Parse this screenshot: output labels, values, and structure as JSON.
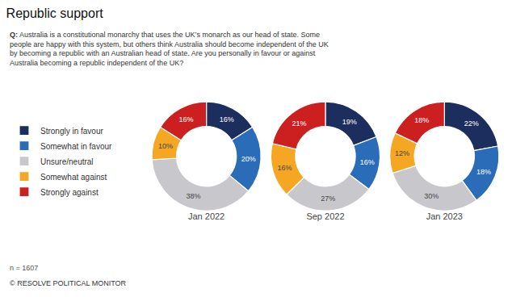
{
  "chart_data": {
    "type": "pie",
    "title": "Republic support",
    "subtitle": "Q: Australia is a constitutional monarchy that uses the UK’s monarch as our head of state. Some\npeople are happy with this system, but others think Australia should become independent of the UK\nby becoming a republic with an Australian head of state. Are you personally in favour or against\nAustralia becoming a republic independent of the UK?",
    "annotations": [
      "n = 1607",
      "© RESOLVE POLITICAL MONITOR"
    ],
    "categories": [
      "Strongly in favour",
      "Somewhat in favour",
      "Unsure/neutral",
      "Somewhat against",
      "Strongly against"
    ],
    "colors": [
      "#1c2e5e",
      "#2b6cb8",
      "#c8c8cc",
      "#f5a623",
      "#cc1f1f"
    ],
    "series": [
      {
        "name": "Jan 2022",
        "values": [
          16,
          20,
          38,
          10,
          16
        ],
        "value_labels": [
          "16%",
          "20%",
          "38%",
          "10%",
          "16%"
        ]
      },
      {
        "name": "Sep 2022",
        "values": [
          19,
          16,
          27,
          16,
          21
        ],
        "value_labels": [
          "19%",
          "16%",
          "27%",
          "16%",
          "21%"
        ]
      },
      {
        "name": "Jan 2023",
        "values": [
          22,
          18,
          30,
          12,
          18
        ],
        "value_labels": [
          "22%",
          "18%",
          "30%",
          "12%",
          "18%"
        ]
      }
    ],
    "data_labels": true,
    "legend": "left"
  }
}
